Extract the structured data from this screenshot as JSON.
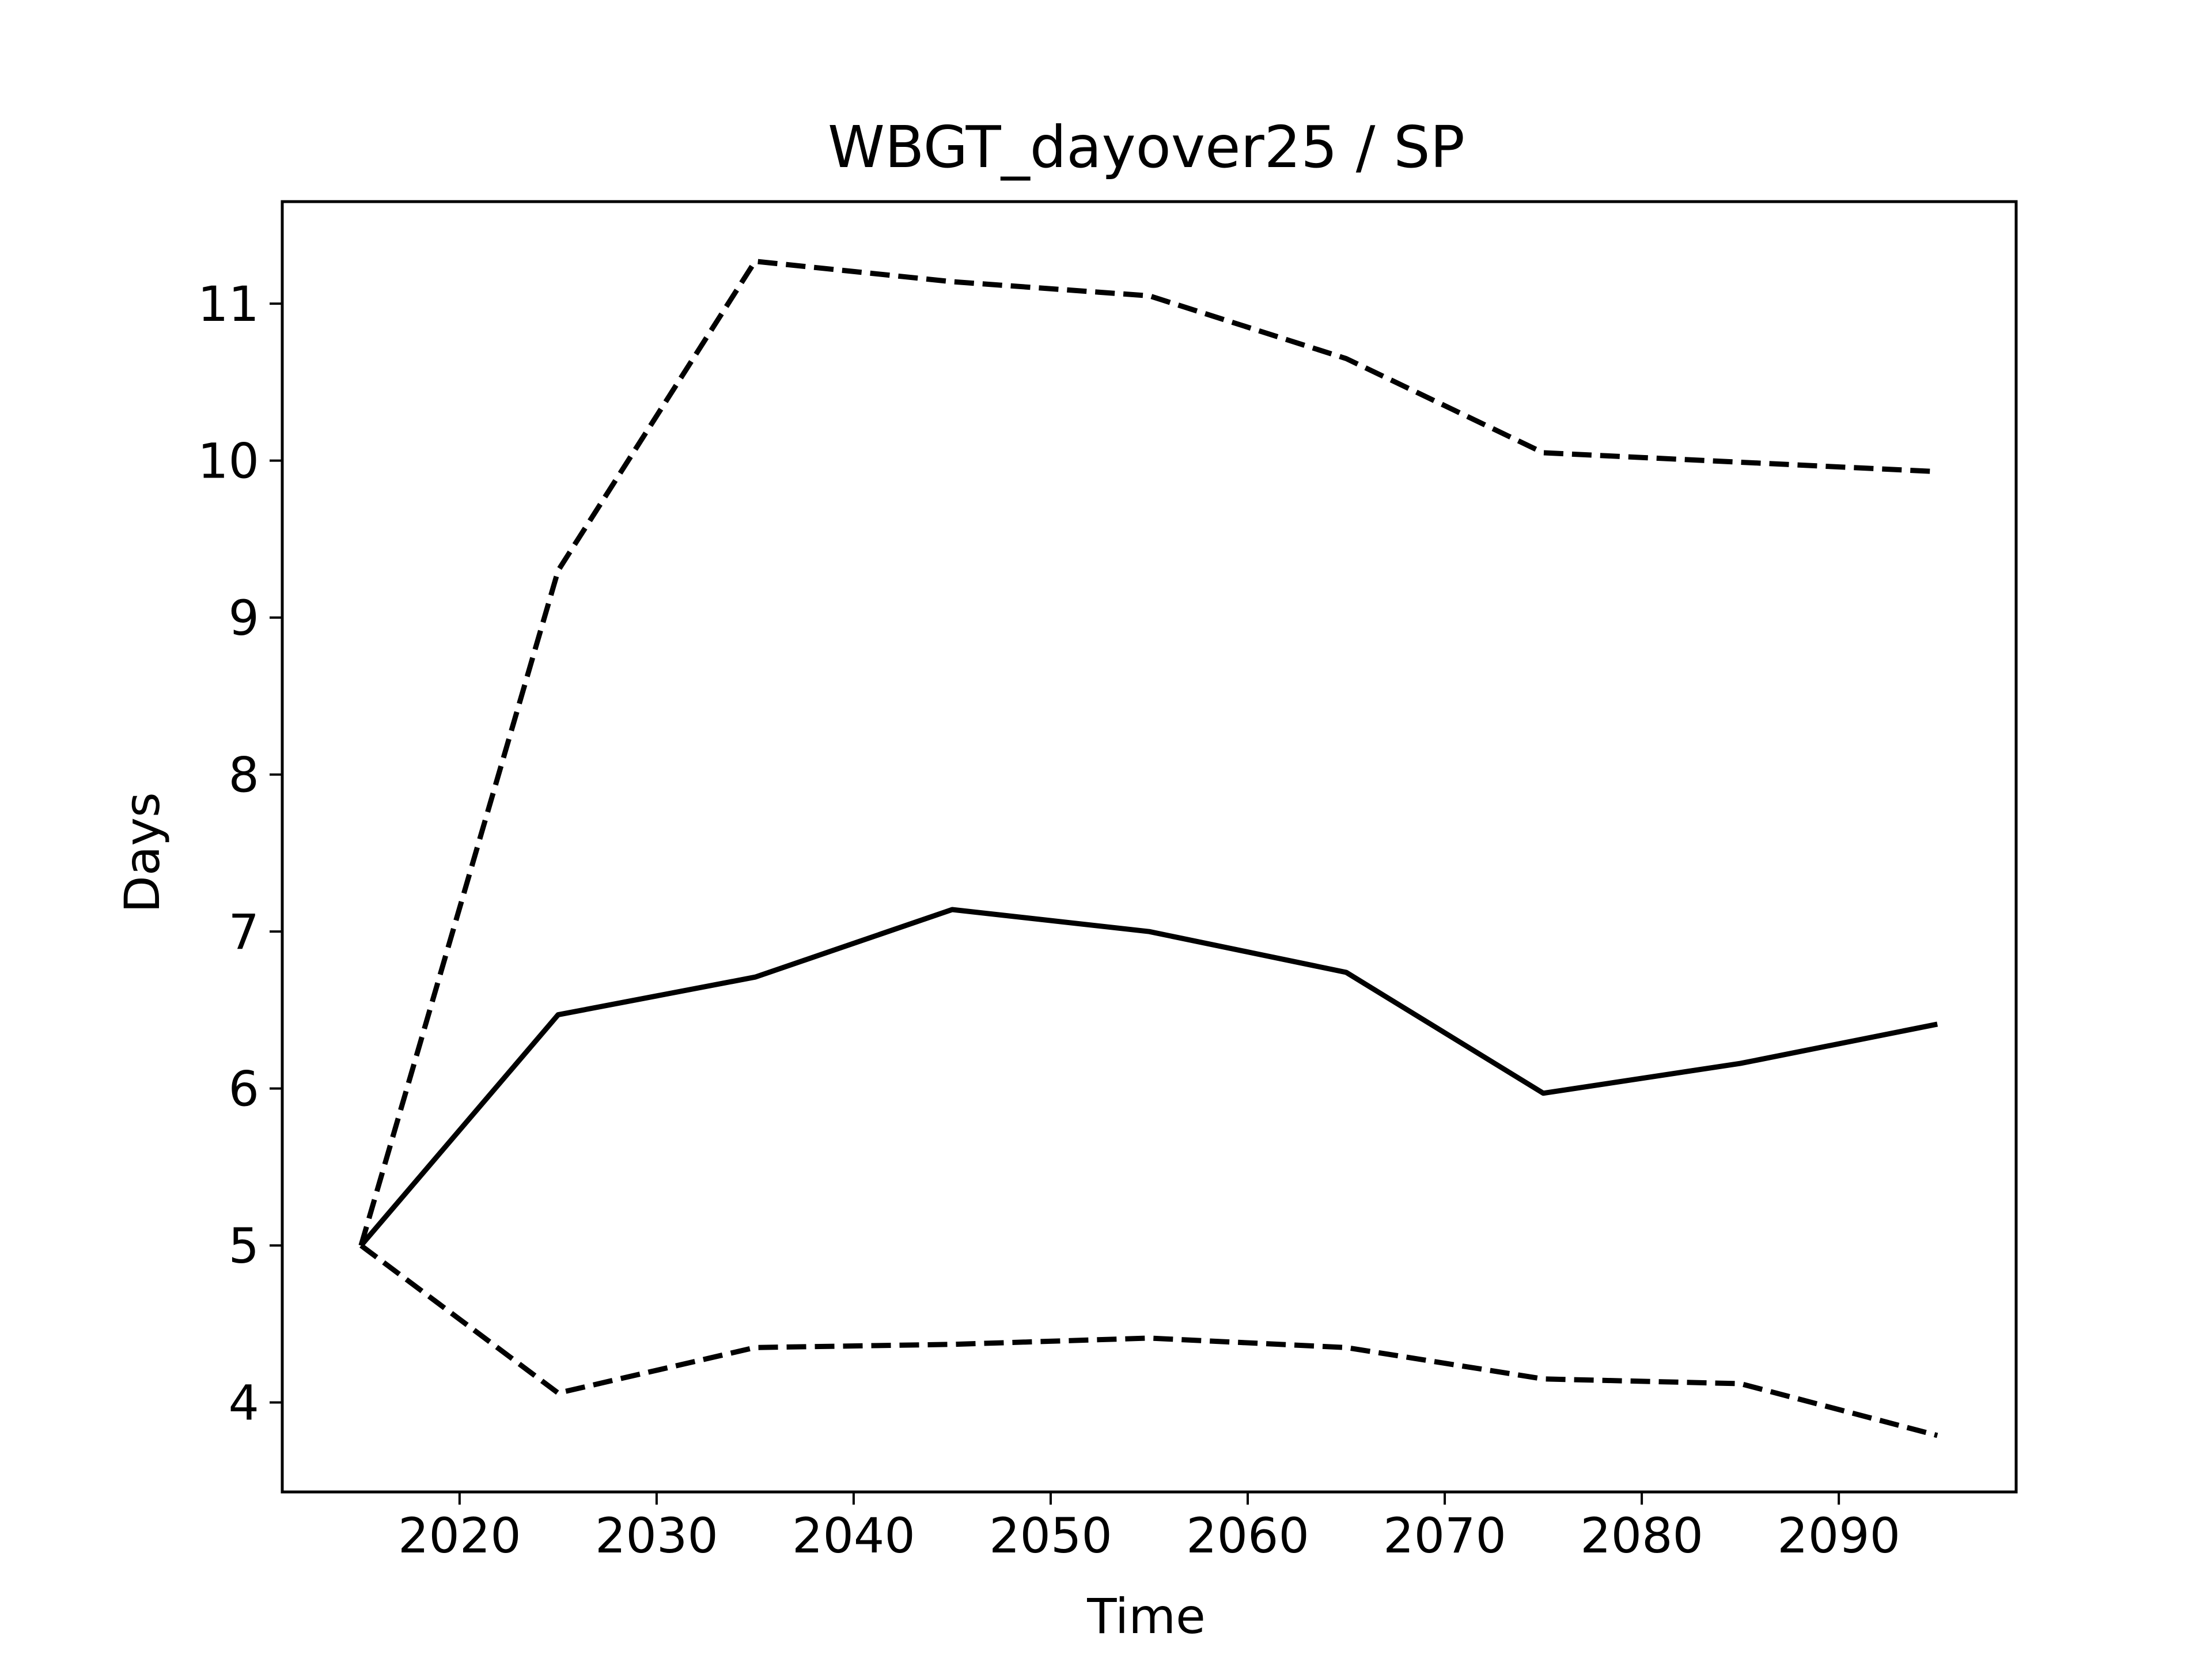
{
  "chart_data": {
    "type": "line",
    "title": "WBGT_dayover25 / SP",
    "xlabel": "Time",
    "ylabel": "Days",
    "xlim": [
      2011,
      2099
    ],
    "ylim": [
      3.43,
      11.65
    ],
    "xticks": [
      2020,
      2030,
      2040,
      2050,
      2060,
      2070,
      2080,
      2090
    ],
    "yticks": [
      4,
      5,
      6,
      7,
      8,
      9,
      10,
      11
    ],
    "grid": false,
    "legend": "none",
    "x": [
      2015,
      2025,
      2035,
      2045,
      2055,
      2065,
      2075,
      2085,
      2095
    ],
    "series": [
      {
        "style": "solid",
        "color": "#000000",
        "values": [
          5.0,
          6.47,
          6.71,
          7.14,
          7.0,
          6.74,
          5.97,
          6.16,
          6.41
        ]
      },
      {
        "style": "dashed",
        "color": "#000000",
        "values": [
          5.0,
          9.3,
          11.27,
          11.14,
          11.05,
          10.65,
          10.05,
          9.99,
          9.93
        ]
      },
      {
        "style": "dashed",
        "color": "#000000",
        "values": [
          5.0,
          4.06,
          4.35,
          4.37,
          4.41,
          4.35,
          4.15,
          4.12,
          3.79
        ]
      }
    ]
  }
}
